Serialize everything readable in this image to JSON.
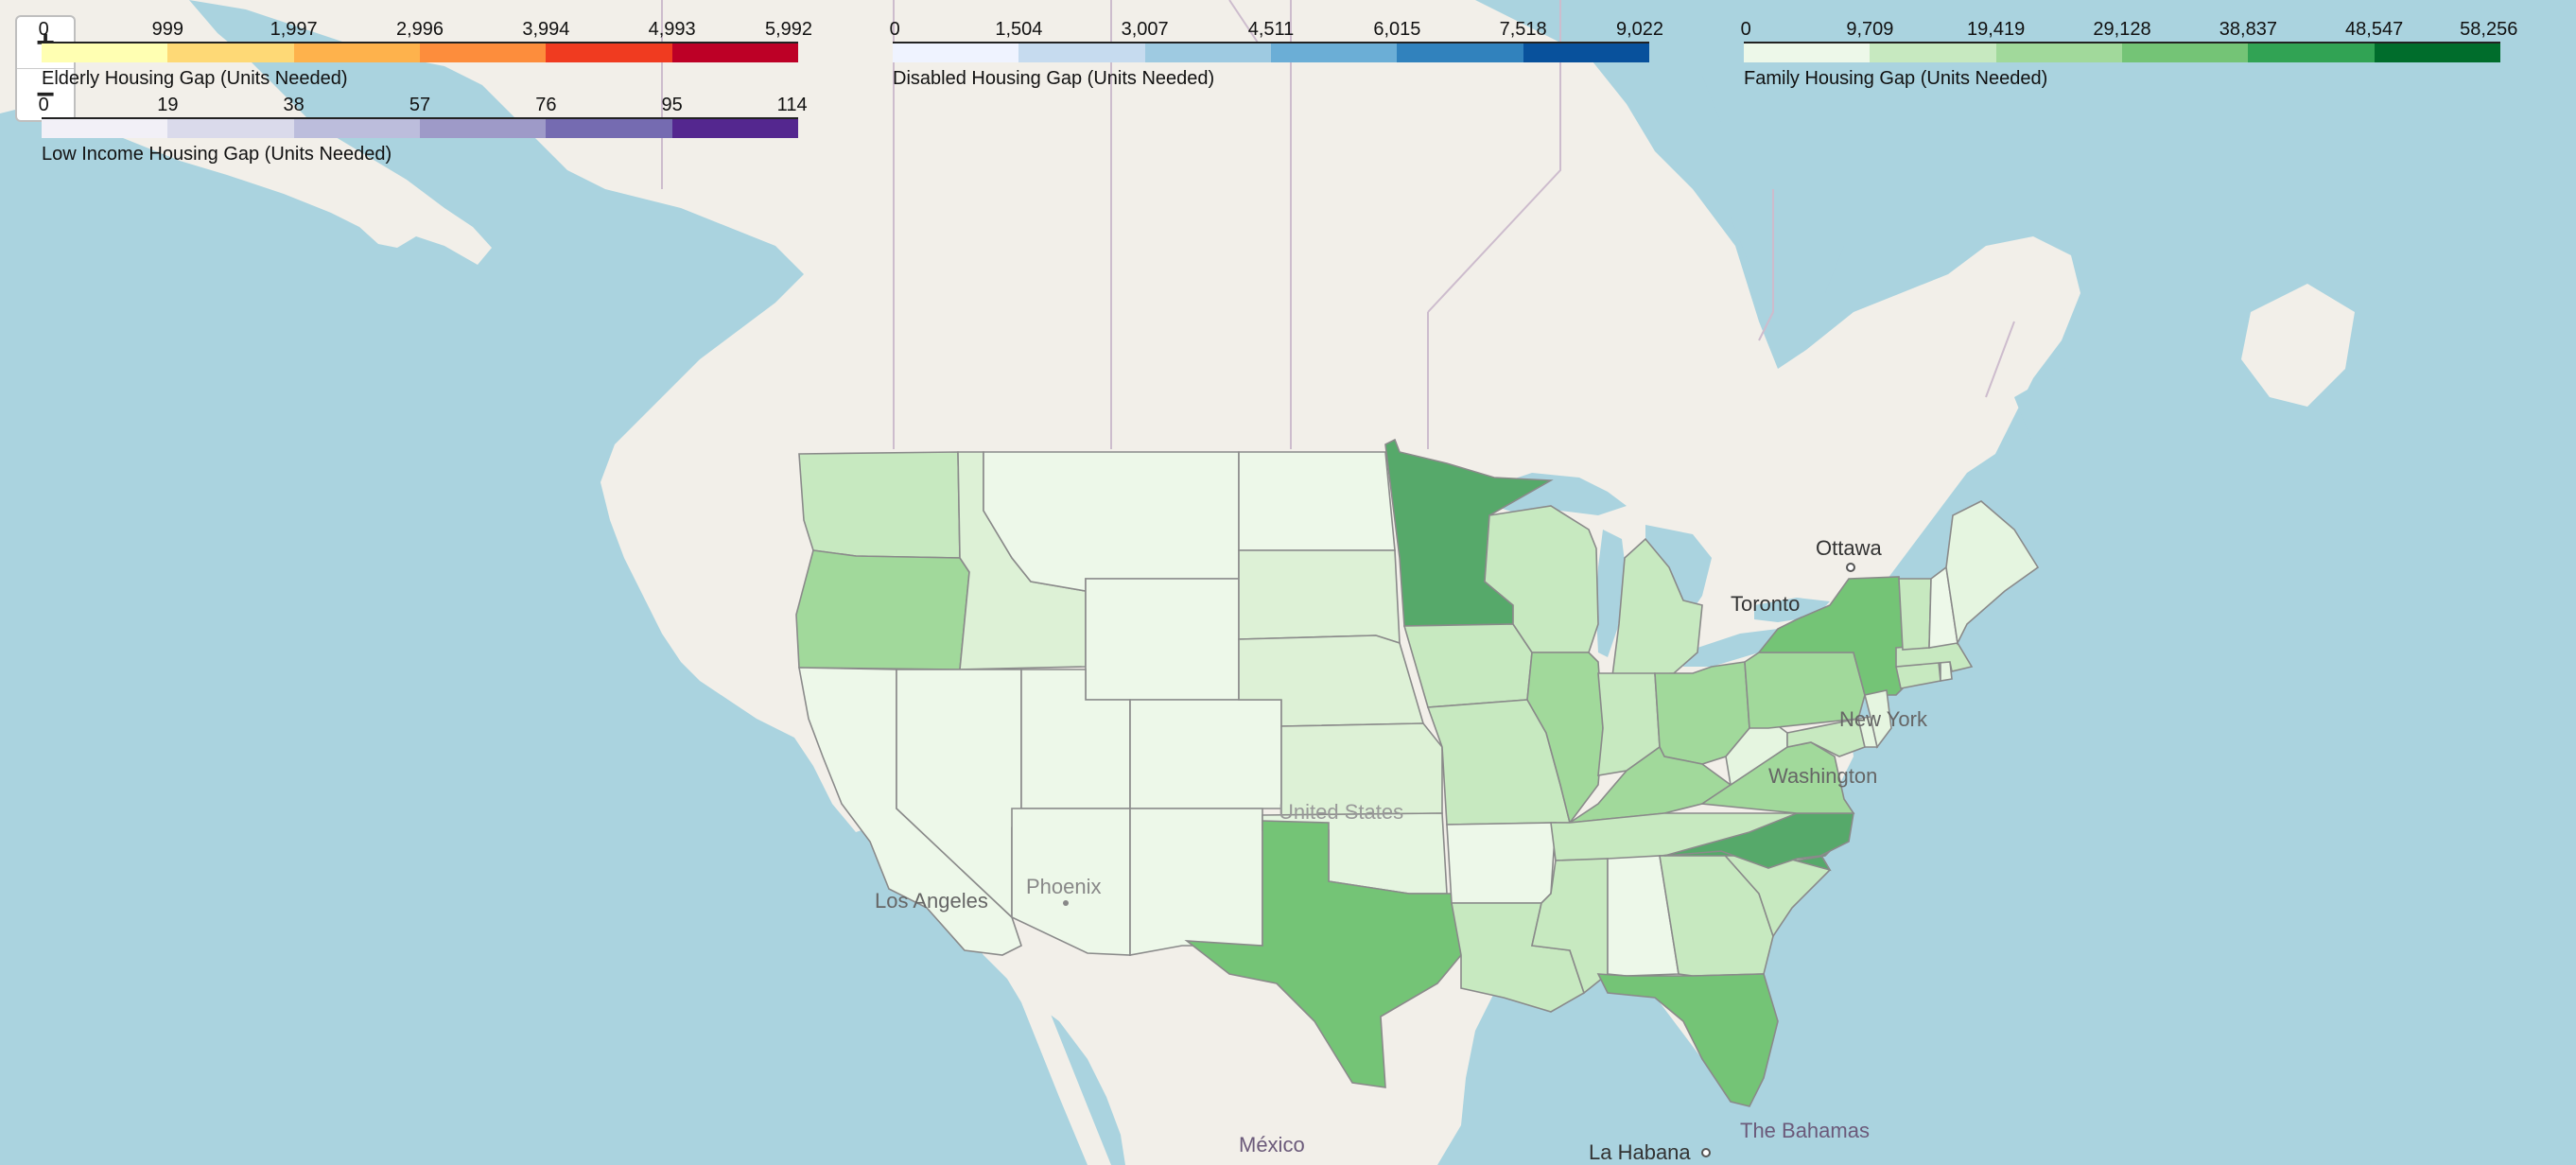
{
  "legends": [
    {
      "id": "elderly",
      "caption": "Elderly Housing Gap (Units Needed)",
      "ticks": [
        "0",
        "999",
        "1,997",
        "2,996",
        "3,994",
        "4,993",
        "5,992"
      ],
      "colors": [
        "#ffffb2",
        "#fed976",
        "#feb24c",
        "#fd8d3c",
        "#f03b20",
        "#bd0026"
      ]
    },
    {
      "id": "disabled",
      "caption": "Disabled Housing Gap (Units Needed)",
      "ticks": [
        "0",
        "1,504",
        "3,007",
        "4,511",
        "6,015",
        "7,518",
        "9,022"
      ],
      "colors": [
        "#eff3ff",
        "#c6dbef",
        "#9ecae1",
        "#6baed6",
        "#3182bd",
        "#08519c"
      ]
    },
    {
      "id": "family",
      "caption": "Family Housing Gap (Units Needed)",
      "ticks": [
        "0",
        "9,709",
        "19,419",
        "29,128",
        "38,837",
        "48,547",
        "58,256"
      ],
      "colors": [
        "#edf8e9",
        "#c7e9c0",
        "#a1d99b",
        "#74c476",
        "#31a354",
        "#006d2c"
      ]
    },
    {
      "id": "low-income",
      "caption": "Low Income Housing Gap (Units Needed)",
      "ticks": [
        "0",
        "19",
        "38",
        "57",
        "76",
        "95",
        "114"
      ],
      "colors": [
        "#f2f0f7",
        "#dadaeb",
        "#bcbddc",
        "#9e9ac8",
        "#756bb1",
        "#54278f"
      ]
    }
  ],
  "zoom": {
    "in_label": "+",
    "out_label": "−"
  },
  "place_labels": [
    {
      "id": "ottawa",
      "text": "Ottawa"
    },
    {
      "id": "toronto",
      "text": "Toronto"
    },
    {
      "id": "new-york",
      "text": "New York"
    },
    {
      "id": "washington",
      "text": "Washington"
    },
    {
      "id": "united-states",
      "text": "United States"
    },
    {
      "id": "phoenix",
      "text": "Phoenix"
    },
    {
      "id": "los-angeles",
      "text": "Los Angeles"
    },
    {
      "id": "mexico",
      "text": "México"
    },
    {
      "id": "la-habana",
      "text": "La Habana"
    },
    {
      "id": "the-bahamas",
      "text": "The Bahamas"
    }
  ],
  "colors": {
    "ocean": "#aad3df",
    "land": "#f2efe9",
    "boundary": "#b9a9b9",
    "state_border": "#888888"
  }
}
